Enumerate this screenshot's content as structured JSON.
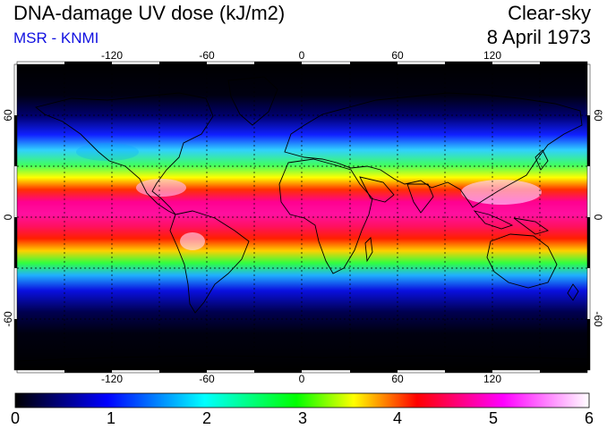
{
  "header": {
    "title": "DNA-damage UV dose (kJ/m2)",
    "subtitle": "MSR - KNMI",
    "condition": "Clear-sky",
    "date": "8 April 1973"
  },
  "map": {
    "projection": "equirectangular",
    "lon_range": [
      -180,
      180
    ],
    "lat_range": [
      -90,
      90
    ],
    "grid": "dashed, 30 degree spacing",
    "lon_ticks": [
      "-120",
      "-60",
      "0",
      "60",
      "120"
    ],
    "lat_ticks": [
      "60",
      "0",
      "-60"
    ],
    "field": "UV dose, maximum near tropics (~5-6 kJ/m2), near 0 at high latitudes"
  },
  "colorbar": {
    "min": 0,
    "max": 6,
    "labels": [
      "0",
      "1",
      "2",
      "3",
      "4",
      "5",
      "6"
    ],
    "colors": [
      "#000000",
      "#0000ff",
      "#00ffff",
      "#00ff00",
      "#ffff00",
      "#ff0000",
      "#ff00ff",
      "#ffffff"
    ]
  }
}
